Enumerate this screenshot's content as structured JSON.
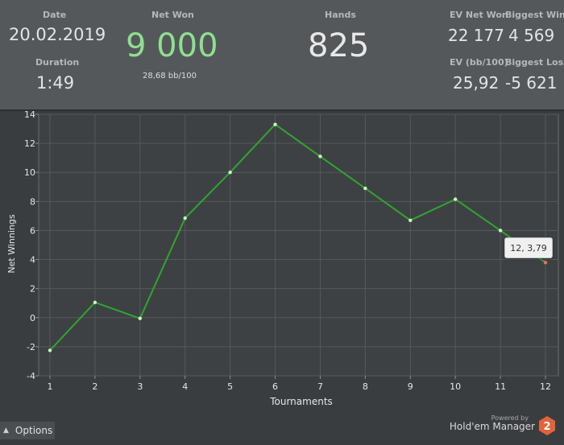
{
  "summary": {
    "date_label": "Date",
    "date_value": "20.02.2019",
    "duration_label": "Duration",
    "duration_value": "1:49",
    "net_won_label": "Net Won",
    "net_won_value": "9 000",
    "bb100_value": "28,68 bb/100",
    "hands_label": "Hands",
    "hands_value": "825",
    "ev_net_won_label": "EV Net Won",
    "ev_net_won_value": "22 177",
    "biggest_win_label": "Biggest Win",
    "biggest_win_value": "4 569",
    "ev_bb100_label": "EV (bb/100)",
    "ev_bb100_value": "25,92",
    "biggest_loss_label": "Biggest Loss",
    "biggest_loss_value": "-5 621"
  },
  "colors": {
    "net_won": "#8ee08e",
    "line": "#2fa52f",
    "point": "#c8f5c0",
    "last_point": "#f07050"
  },
  "chart_data": {
    "type": "line",
    "xlabel": "Tournaments",
    "ylabel": "Net Winnings",
    "x": [
      1,
      2,
      3,
      4,
      5,
      6,
      7,
      8,
      9,
      10,
      11,
      12
    ],
    "series": [
      {
        "values": [
          -2.25,
          1.05,
          -0.05,
          6.85,
          10.0,
          13.3,
          11.1,
          8.9,
          6.7,
          8.15,
          6.0,
          3.79
        ]
      }
    ],
    "xlim": [
      1,
      12
    ],
    "ylim": [
      -4,
      14
    ],
    "yticks": [
      -4,
      -2,
      0,
      2,
      4,
      6,
      8,
      10,
      12,
      14
    ],
    "xticks": [
      1,
      2,
      3,
      4,
      5,
      6,
      7,
      8,
      9,
      10,
      11,
      12
    ],
    "grid": true,
    "tooltip": "12, 3,79"
  },
  "footer": {
    "options_label": "Options",
    "powered_by": "Powered by",
    "app_name": "Hold'em Manager",
    "logo_digit": "2"
  }
}
